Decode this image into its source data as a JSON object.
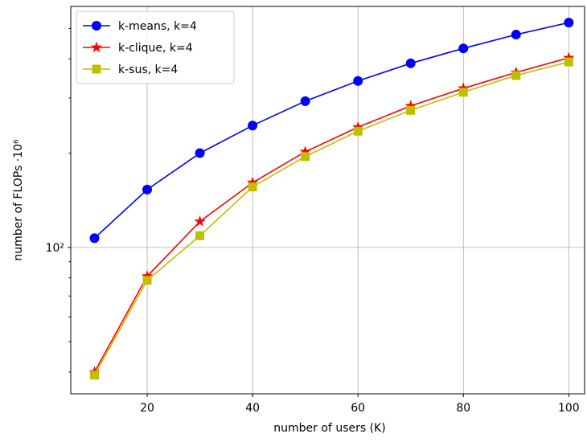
{
  "chart_data": {
    "type": "line",
    "xlabel": "number of users (K)",
    "ylabel": "number of FLOPs ·10⁶",
    "x": [
      10,
      20,
      30,
      40,
      50,
      60,
      70,
      80,
      90,
      100
    ],
    "series": [
      {
        "name": "k-means, k=4",
        "color": "#0000ff",
        "marker": "circle",
        "values": [
          107,
          153,
          200,
          245,
          293,
          340,
          387,
          432,
          478,
          522
        ]
      },
      {
        "name": "k-clique, k=4",
        "color": "#ff0000",
        "marker": "star",
        "values": [
          40.0,
          80.9,
          121,
          161,
          202,
          242,
          283,
          322,
          362,
          403
        ]
      },
      {
        "name": "k-sus, k=4",
        "color": "#bfbf00",
        "marker": "square",
        "values": [
          39.1,
          78.5,
          109,
          156,
          195,
          235,
          274,
          313,
          354,
          391
        ]
      }
    ],
    "xlim": [
      5.5,
      103
    ],
    "xticks": [
      20,
      40,
      60,
      80,
      100
    ],
    "ylim": [
      34.1,
      588
    ],
    "yscale": "log",
    "yticks": [
      {
        "value": 100,
        "label": "10²"
      }
    ],
    "yminorticks": [
      40,
      50,
      60,
      70,
      80,
      90,
      200,
      300,
      400,
      500
    ],
    "grid": true,
    "legend": "upper left"
  }
}
